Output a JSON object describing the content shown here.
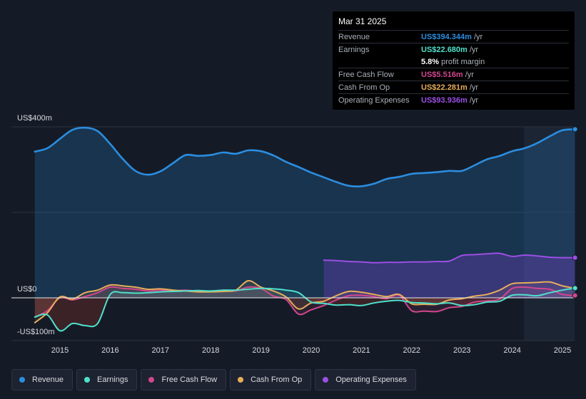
{
  "chart_data": {
    "type": "area",
    "y_axis_labels": {
      "top": "US$400m",
      "zero": "US$0",
      "bottom": "-US$100m"
    },
    "ylim": [
      -100,
      400
    ],
    "xlim": [
      2014.5,
      2025.25
    ],
    "x_ticks": [
      "2015",
      "2016",
      "2017",
      "2018",
      "2019",
      "2020",
      "2021",
      "2022",
      "2023",
      "2024",
      "2025"
    ],
    "forecast_start": 2024.25,
    "series": [
      {
        "name": "Revenue",
        "color": "#2b8de0",
        "points": [
          [
            2014.5,
            342
          ],
          [
            2014.75,
            350
          ],
          [
            2015.0,
            372
          ],
          [
            2015.25,
            393
          ],
          [
            2015.5,
            398
          ],
          [
            2015.75,
            390
          ],
          [
            2016.0,
            360
          ],
          [
            2016.25,
            325
          ],
          [
            2016.5,
            297
          ],
          [
            2016.75,
            288
          ],
          [
            2017.0,
            296
          ],
          [
            2017.25,
            315
          ],
          [
            2017.5,
            334
          ],
          [
            2017.75,
            332
          ],
          [
            2018.0,
            334
          ],
          [
            2018.25,
            340
          ],
          [
            2018.5,
            337
          ],
          [
            2018.75,
            345
          ],
          [
            2019.0,
            343
          ],
          [
            2019.25,
            333
          ],
          [
            2019.5,
            318
          ],
          [
            2019.75,
            306
          ],
          [
            2020.0,
            293
          ],
          [
            2020.25,
            282
          ],
          [
            2020.5,
            271
          ],
          [
            2020.75,
            262
          ],
          [
            2021.0,
            261
          ],
          [
            2021.25,
            267
          ],
          [
            2021.5,
            278
          ],
          [
            2021.75,
            283
          ],
          [
            2022.0,
            290
          ],
          [
            2022.25,
            292
          ],
          [
            2022.5,
            294
          ],
          [
            2022.75,
            297
          ],
          [
            2023.0,
            297
          ],
          [
            2023.25,
            310
          ],
          [
            2023.5,
            324
          ],
          [
            2023.75,
            332
          ],
          [
            2024.0,
            343
          ],
          [
            2024.25,
            350
          ],
          [
            2024.5,
            362
          ],
          [
            2024.75,
            378
          ],
          [
            2025.0,
            392
          ],
          [
            2025.25,
            394.3
          ]
        ]
      },
      {
        "name": "Earnings",
        "color": "#4fe0cb",
        "points": [
          [
            2014.5,
            -45
          ],
          [
            2014.75,
            -40
          ],
          [
            2015.0,
            -77
          ],
          [
            2015.25,
            -60
          ],
          [
            2015.5,
            -65
          ],
          [
            2015.75,
            -60
          ],
          [
            2016.0,
            8
          ],
          [
            2016.25,
            12
          ],
          [
            2016.5,
            11
          ],
          [
            2016.75,
            12
          ],
          [
            2017.0,
            14
          ],
          [
            2017.25,
            15
          ],
          [
            2017.5,
            16
          ],
          [
            2017.75,
            17
          ],
          [
            2018.0,
            16
          ],
          [
            2018.25,
            18
          ],
          [
            2018.5,
            18
          ],
          [
            2018.75,
            20
          ],
          [
            2019.0,
            22
          ],
          [
            2019.25,
            21
          ],
          [
            2019.5,
            18
          ],
          [
            2019.75,
            12
          ],
          [
            2020.0,
            -10
          ],
          [
            2020.25,
            -13
          ],
          [
            2020.5,
            -17
          ],
          [
            2020.75,
            -16
          ],
          [
            2021.0,
            -18
          ],
          [
            2021.25,
            -12
          ],
          [
            2021.5,
            -8
          ],
          [
            2021.75,
            -6
          ],
          [
            2022.0,
            -11
          ],
          [
            2022.25,
            -12
          ],
          [
            2022.5,
            -14
          ],
          [
            2022.75,
            -12
          ],
          [
            2023.0,
            -18
          ],
          [
            2023.25,
            -16
          ],
          [
            2023.5,
            -10
          ],
          [
            2023.75,
            -8
          ],
          [
            2024.0,
            6
          ],
          [
            2024.25,
            7
          ],
          [
            2024.5,
            5
          ],
          [
            2024.75,
            12
          ],
          [
            2025.0,
            18
          ],
          [
            2025.25,
            22.68
          ]
        ]
      },
      {
        "name": "Free Cash Flow",
        "color": "#d1478d",
        "points": [
          [
            2014.5,
            -45
          ],
          [
            2014.75,
            -30
          ],
          [
            2015.0,
            0
          ],
          [
            2015.25,
            -5
          ],
          [
            2015.5,
            3
          ],
          [
            2015.75,
            12
          ],
          [
            2016.0,
            25
          ],
          [
            2016.25,
            22
          ],
          [
            2016.5,
            20
          ],
          [
            2016.75,
            16
          ],
          [
            2017.0,
            18
          ],
          [
            2017.25,
            16
          ],
          [
            2017.5,
            18
          ],
          [
            2017.75,
            15
          ],
          [
            2018.0,
            15
          ],
          [
            2018.25,
            18
          ],
          [
            2018.5,
            16
          ],
          [
            2018.75,
            25
          ],
          [
            2019.0,
            22
          ],
          [
            2019.25,
            4
          ],
          [
            2019.5,
            -4
          ],
          [
            2019.75,
            -38
          ],
          [
            2020.0,
            -28
          ],
          [
            2020.25,
            -18
          ],
          [
            2020.5,
            -5
          ],
          [
            2020.75,
            5
          ],
          [
            2021.0,
            6
          ],
          [
            2021.25,
            3
          ],
          [
            2021.5,
            -2
          ],
          [
            2021.75,
            6
          ],
          [
            2022.0,
            -30
          ],
          [
            2022.25,
            -31
          ],
          [
            2022.5,
            -32
          ],
          [
            2022.75,
            -23
          ],
          [
            2023.0,
            -20
          ],
          [
            2023.25,
            -10
          ],
          [
            2023.5,
            -7
          ],
          [
            2023.75,
            -3
          ],
          [
            2024.0,
            22
          ],
          [
            2024.25,
            25
          ],
          [
            2024.5,
            22
          ],
          [
            2024.75,
            20
          ],
          [
            2025.0,
            8
          ],
          [
            2025.25,
            5.52
          ]
        ]
      },
      {
        "name": "Cash From Op",
        "color": "#e8ad5a",
        "points": [
          [
            2014.5,
            -58
          ],
          [
            2014.75,
            -35
          ],
          [
            2015.0,
            2
          ],
          [
            2015.25,
            -3
          ],
          [
            2015.5,
            12
          ],
          [
            2015.75,
            18
          ],
          [
            2016.0,
            30
          ],
          [
            2016.25,
            28
          ],
          [
            2016.5,
            25
          ],
          [
            2016.75,
            20
          ],
          [
            2017.0,
            21
          ],
          [
            2017.25,
            18
          ],
          [
            2017.5,
            16
          ],
          [
            2017.75,
            14
          ],
          [
            2018.0,
            14
          ],
          [
            2018.25,
            15
          ],
          [
            2018.5,
            18
          ],
          [
            2018.75,
            40
          ],
          [
            2019.0,
            25
          ],
          [
            2019.25,
            16
          ],
          [
            2019.5,
            2
          ],
          [
            2019.75,
            -26
          ],
          [
            2020.0,
            -12
          ],
          [
            2020.25,
            -8
          ],
          [
            2020.5,
            5
          ],
          [
            2020.75,
            15
          ],
          [
            2021.0,
            13
          ],
          [
            2021.25,
            8
          ],
          [
            2021.5,
            3
          ],
          [
            2021.75,
            8
          ],
          [
            2022.0,
            -14
          ],
          [
            2022.25,
            -15
          ],
          [
            2022.5,
            -15
          ],
          [
            2022.75,
            -5
          ],
          [
            2023.0,
            -2
          ],
          [
            2023.25,
            4
          ],
          [
            2023.5,
            8
          ],
          [
            2023.75,
            18
          ],
          [
            2024.0,
            33
          ],
          [
            2024.25,
            35
          ],
          [
            2024.5,
            36
          ],
          [
            2024.75,
            37
          ],
          [
            2025.0,
            28
          ],
          [
            2025.25,
            22.28
          ]
        ]
      },
      {
        "name": "Operating Expenses",
        "color": "#9b4fe3",
        "points": [
          [
            2020.25,
            88
          ],
          [
            2020.5,
            87
          ],
          [
            2020.75,
            85
          ],
          [
            2021.0,
            84
          ],
          [
            2021.25,
            82
          ],
          [
            2021.5,
            83
          ],
          [
            2021.75,
            83
          ],
          [
            2022.0,
            84
          ],
          [
            2022.25,
            84
          ],
          [
            2022.5,
            85
          ],
          [
            2022.75,
            86
          ],
          [
            2023.0,
            99
          ],
          [
            2023.25,
            101
          ],
          [
            2023.5,
            103
          ],
          [
            2023.75,
            104
          ],
          [
            2024.0,
            97
          ],
          [
            2024.25,
            100
          ],
          [
            2024.5,
            98
          ],
          [
            2024.75,
            95
          ],
          [
            2025.0,
            94
          ],
          [
            2025.25,
            93.94
          ]
        ]
      }
    ]
  },
  "tooltip": {
    "date": "Mar 31 2025",
    "rows": [
      {
        "label": "Revenue",
        "value": "US$394.344m",
        "unit": "/yr",
        "color": "#2b8de0"
      },
      {
        "label": "Earnings",
        "value": "US$22.680m",
        "unit": "/yr",
        "color": "#4fe0cb"
      },
      {
        "label": "",
        "value": "5.8%",
        "unit": "profit margin",
        "color": "#ffffff"
      },
      {
        "label": "Free Cash Flow",
        "value": "US$5.516m",
        "unit": "/yr",
        "color": "#d1478d"
      },
      {
        "label": "Cash From Op",
        "value": "US$22.281m",
        "unit": "/yr",
        "color": "#e8ad5a"
      },
      {
        "label": "Operating Expenses",
        "value": "US$93.936m",
        "unit": "/yr",
        "color": "#9b4fe3"
      }
    ]
  },
  "legend": [
    {
      "label": "Revenue",
      "color": "#2b8de0"
    },
    {
      "label": "Earnings",
      "color": "#4fe0cb"
    },
    {
      "label": "Free Cash Flow",
      "color": "#d1478d"
    },
    {
      "label": "Cash From Op",
      "color": "#e8ad5a"
    },
    {
      "label": "Operating Expenses",
      "color": "#9b4fe3"
    }
  ]
}
